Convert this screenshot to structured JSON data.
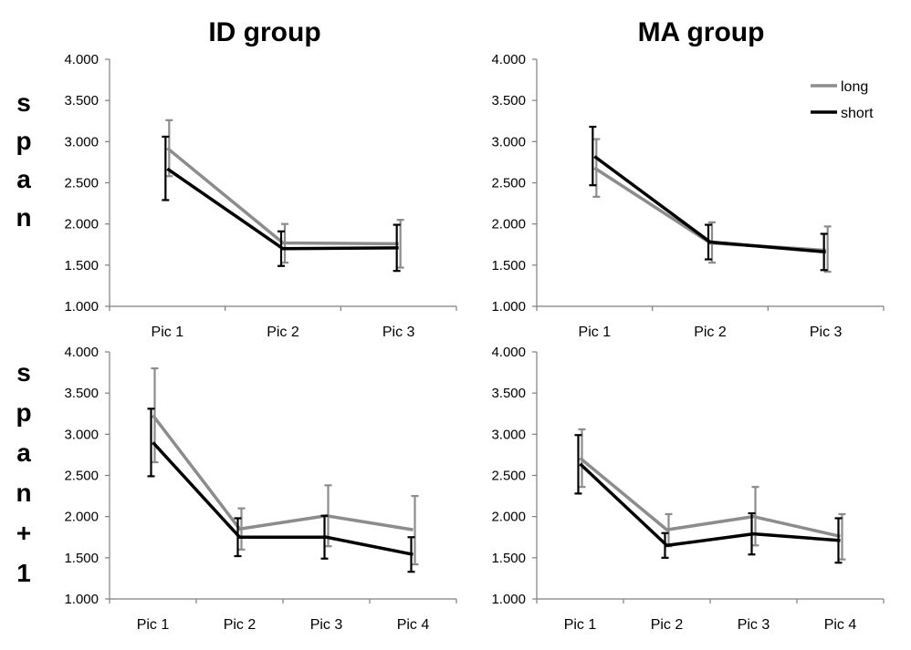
{
  "column_titles": [
    "ID group",
    "MA group"
  ],
  "row_labels": [
    [
      "s",
      "p",
      "a",
      "n"
    ],
    [
      "s",
      "p",
      "a",
      "n",
      "+",
      "1"
    ]
  ],
  "legend": [
    "long",
    "short"
  ],
  "colors": {
    "long": "#8c8c8c",
    "short": "#000000",
    "axis": "#7f7f7f"
  },
  "chart_data": [
    {
      "type": "line",
      "title": "ID group",
      "row": "span",
      "categories": [
        "Pic 1",
        "Pic 2",
        "Pic 3"
      ],
      "ylim": [
        1.0,
        4.0
      ],
      "yticks": [
        "1.000",
        "1.500",
        "2.000",
        "2.500",
        "3.000",
        "3.500",
        "4.000"
      ],
      "series": [
        {
          "name": "long",
          "values": [
            2.92,
            1.77,
            1.76
          ],
          "err_low": [
            2.58,
            1.53,
            1.47
          ],
          "err_high": [
            3.26,
            2.0,
            2.05
          ]
        },
        {
          "name": "short",
          "values": [
            2.67,
            1.7,
            1.71
          ],
          "err_low": [
            2.29,
            1.49,
            1.43
          ],
          "err_high": [
            3.06,
            1.91,
            1.99
          ]
        }
      ]
    },
    {
      "type": "line",
      "title": "MA group",
      "row": "span",
      "categories": [
        "Pic 1",
        "Pic 2",
        "Pic 3"
      ],
      "ylim": [
        1.0,
        4.0
      ],
      "yticks": [
        "1.000",
        "1.500",
        "2.000",
        "2.500",
        "3.000",
        "3.500",
        "4.000"
      ],
      "legend_position": "top-right",
      "series": [
        {
          "name": "long",
          "values": [
            2.68,
            1.77,
            1.68
          ],
          "err_low": [
            2.33,
            1.53,
            1.42
          ],
          "err_high": [
            3.03,
            2.02,
            1.97
          ]
        },
        {
          "name": "short",
          "values": [
            2.82,
            1.78,
            1.66
          ],
          "err_low": [
            2.47,
            1.57,
            1.44
          ],
          "err_high": [
            3.18,
            1.99,
            1.88
          ]
        }
      ]
    },
    {
      "type": "line",
      "title": "ID group",
      "row": "span+1",
      "categories": [
        "Pic 1",
        "Pic 2",
        "Pic 3",
        "Pic 4"
      ],
      "ylim": [
        1.0,
        4.0
      ],
      "yticks": [
        "1.000",
        "1.500",
        "2.000",
        "2.500",
        "3.000",
        "3.500",
        "4.000"
      ],
      "series": [
        {
          "name": "long",
          "values": [
            3.23,
            1.85,
            2.01,
            1.84
          ],
          "err_low": [
            2.66,
            1.6,
            1.64,
            1.42
          ],
          "err_high": [
            3.8,
            2.1,
            2.38,
            2.25
          ]
        },
        {
          "name": "short",
          "values": [
            2.9,
            1.75,
            1.75,
            1.54
          ],
          "err_low": [
            2.49,
            1.52,
            1.49,
            1.33
          ],
          "err_high": [
            3.31,
            1.98,
            2.01,
            1.75
          ]
        }
      ]
    },
    {
      "type": "line",
      "title": "MA group",
      "row": "span+1",
      "categories": [
        "Pic 1",
        "Pic 2",
        "Pic 3",
        "Pic 4"
      ],
      "ylim": [
        1.0,
        4.0
      ],
      "yticks": [
        "1.000",
        "1.500",
        "2.000",
        "2.500",
        "3.000",
        "3.500",
        "4.000"
      ],
      "series": [
        {
          "name": "long",
          "values": [
            2.71,
            1.84,
            2.0,
            1.76
          ],
          "err_low": [
            2.36,
            1.64,
            1.65,
            1.48
          ],
          "err_high": [
            3.06,
            2.03,
            2.36,
            2.03
          ]
        },
        {
          "name": "short",
          "values": [
            2.64,
            1.65,
            1.79,
            1.71
          ],
          "err_low": [
            2.28,
            1.5,
            1.54,
            1.44
          ],
          "err_high": [
            2.99,
            1.8,
            2.04,
            1.98
          ]
        }
      ]
    }
  ]
}
